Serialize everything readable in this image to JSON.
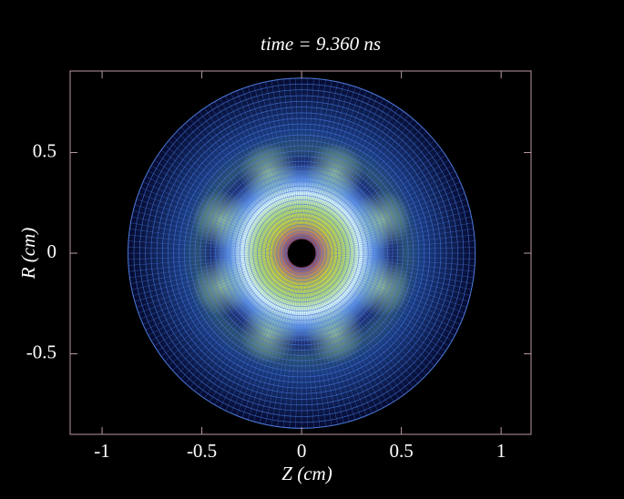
{
  "chart_data": {
    "type": "mesh",
    "title": "time = 9.360 ns",
    "x_label": "Z (cm)",
    "y_label": "R (cm)",
    "xlim": [
      -1.16,
      1.15
    ],
    "ylim": [
      -0.9,
      0.905
    ],
    "xticks": [
      -1,
      -0.5,
      0,
      0.5,
      1
    ],
    "yticks": [
      0.5,
      0,
      -0.5
    ],
    "mesh": {
      "inner_radius": 0.07,
      "outer_radius": 0.87,
      "color": "#4a78d8"
    }
  }
}
